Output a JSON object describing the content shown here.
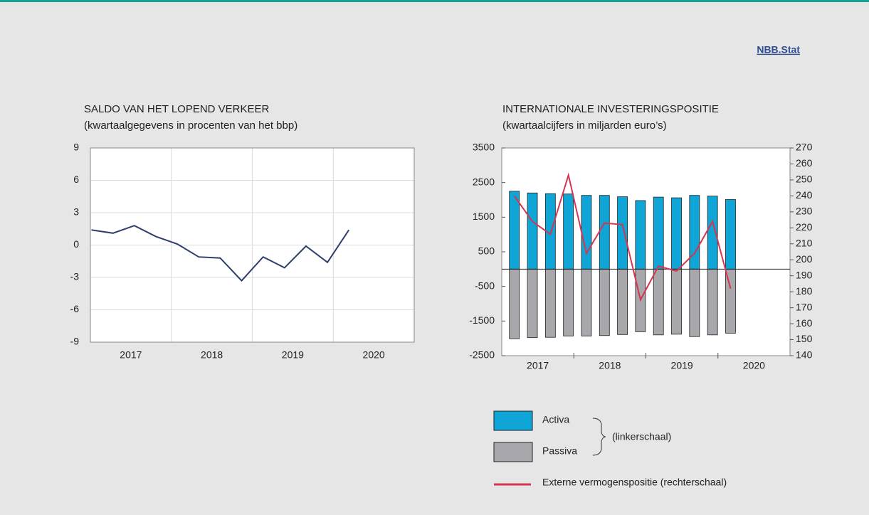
{
  "link": "NBB.Stat",
  "chart_data": [
    {
      "type": "line",
      "title": "SALDO VAN HET LOPEND VERKEER",
      "subtitle": "(kwartaalgegevens in procenten van het bbp)",
      "years": [
        "2017",
        "2018",
        "2019",
        "2020"
      ],
      "values": [
        1.4,
        1.1,
        1.8,
        0.8,
        0.1,
        -1.1,
        -1.2,
        -3.3,
        -1.1,
        -2.1,
        -0.1,
        -1.6,
        1.4
      ],
      "color": "#2f3e6b",
      "ylim": [
        -9,
        9
      ],
      "yticks": [
        -9,
        -6,
        -3,
        0,
        3,
        6,
        9
      ],
      "grid": true
    },
    {
      "type": "bar",
      "title": "INTERNATIONALE INVESTERINGSPOSITIE",
      "subtitle": "(kwartaalcijfers in miljarden euro’s)",
      "years": [
        "2017",
        "2018",
        "2019",
        "2020"
      ],
      "series": [
        {
          "name": "Activa",
          "color": "#0fa5d6",
          "values": [
            2250,
            2200,
            2180,
            2170,
            2130,
            2130,
            2090,
            1980,
            2080,
            2060,
            2130,
            2110,
            2010
          ]
        },
        {
          "name": "Passiva",
          "color": "#a8a7ac",
          "values": [
            -2010,
            -1980,
            -1970,
            -1930,
            -1930,
            -1920,
            -1890,
            -1810,
            -1900,
            -1880,
            -1950,
            -1900,
            -1850
          ]
        },
        {
          "name": "Externe vermogenspositie (rechterschaal)",
          "color": "#d6344f",
          "axis": "y2",
          "values": [
            240,
            224,
            216,
            253,
            204,
            223,
            222,
            175,
            196,
            193,
            204,
            224,
            182
          ]
        }
      ],
      "ylim": [
        -2500,
        3500
      ],
      "yticks": [
        -2500,
        -1500,
        -500,
        500,
        1500,
        2500,
        3500
      ],
      "y2lim": [
        140,
        270
      ],
      "y2ticks": [
        140,
        150,
        160,
        170,
        180,
        190,
        200,
        210,
        220,
        230,
        240,
        250,
        260,
        270
      ],
      "legend_note": "(linkerschaal)"
    }
  ]
}
